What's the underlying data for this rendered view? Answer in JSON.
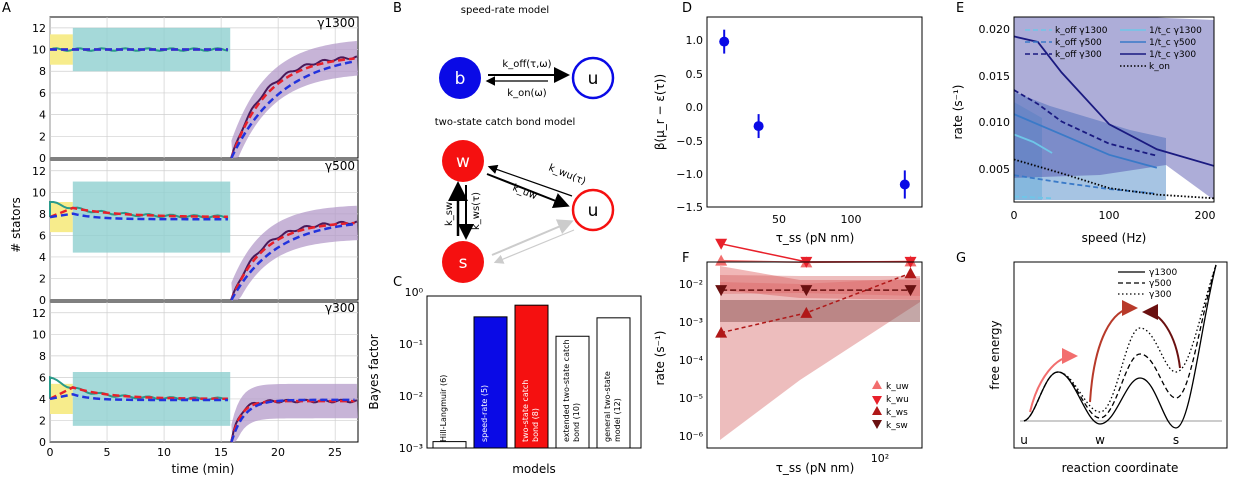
{
  "panels": {
    "A": {
      "letter": "A",
      "xlabel": "time (min)",
      "ylabel": "# stators",
      "xticks": [
        "0",
        "5",
        "10",
        "15",
        "20",
        "25"
      ],
      "yticks": [
        "0",
        "2",
        "4",
        "6",
        "8",
        "10",
        "12"
      ],
      "subplot_labels": [
        "γ1300",
        "γ500",
        "γ300"
      ]
    },
    "B": {
      "letter": "B",
      "title1": "speed-rate model",
      "title2": "two-state catch bond model",
      "b": "b",
      "u": "u",
      "w": "w",
      "s": "s",
      "k_off": "k_off(τ,ω)",
      "k_on": "k_on(ω)",
      "k_wu": "k_wu(τ)",
      "k_uw": "k_uw",
      "k_sw": "k_sw",
      "k_ws": "k_ws(τ)"
    },
    "C": {
      "letter": "C",
      "ylabel": "Bayes factor",
      "xlabel": "models",
      "yticks": [
        "10⁻³",
        "10⁻²",
        "10⁻¹",
        "10⁰"
      ]
    },
    "D": {
      "letter": "D",
      "ylabel": "β(μ_r − ε(τ))",
      "xlabel": "τ_ss (pN nm)",
      "xticks": [
        "50",
        "100"
      ],
      "yticks": [
        "1.0",
        "0.5",
        "0.0",
        "−0.5",
        "−1.0",
        "−1.5"
      ]
    },
    "E": {
      "letter": "E",
      "ylabel": "rate (s⁻¹)",
      "xlabel": "speed (Hz)",
      "xticks": [
        "0",
        "100",
        "200"
      ],
      "yticks": [
        "0.005",
        "0.010",
        "0.015",
        "0.020"
      ],
      "legend": [
        "k_off γ1300",
        "k_off γ500",
        "k_off γ300",
        "1/t_c γ1300",
        "1/t_c γ500",
        "1/t_c γ300",
        "k_on"
      ]
    },
    "F": {
      "letter": "F",
      "ylabel": "rate (s⁻¹)",
      "xlabel": "τ_ss (pN nm)",
      "xtick": "10²",
      "yticks": [
        "10⁻⁶",
        "10⁻⁵",
        "10⁻⁴",
        "10⁻³",
        "10⁻²"
      ],
      "legend": [
        "k_uw",
        "k_wu",
        "k_ws",
        "k_sw"
      ]
    },
    "G": {
      "letter": "G",
      "ylabel": "free energy",
      "xlabel": "reaction coordinate",
      "ticks": [
        "u",
        "w",
        "s"
      ],
      "legend": [
        "γ1300",
        "γ500",
        "γ300"
      ]
    }
  },
  "colors": {
    "teal": "#8fcfcf",
    "purple": "#b49bc9",
    "yellow": "#f7ec8c",
    "red": "#e8202a",
    "blue": "#2233dd",
    "navy": "#1a1a80"
  },
  "chart_data": [
    {
      "type": "bar",
      "panel": "C",
      "categories": [
        "Hill-Langmuir (6)",
        "speed-rate (5)",
        "two-state catch bond (8)",
        "extended two-state catch bond (10)",
        "general two-state model (12)"
      ],
      "values": [
        0.0014,
        1.0,
        1.85,
        0.36,
        0.95
      ],
      "log_y": true,
      "ylim": [
        0.001,
        3
      ]
    },
    {
      "type": "scatter",
      "panel": "D",
      "x": [
        12,
        36,
        138
      ],
      "y": [
        0.85,
        -0.35,
        -1.18
      ],
      "yerr": [
        0.17,
        0.17,
        0.2
      ],
      "xlim": [
        0,
        150
      ],
      "ylim": [
        -1.5,
        1.2
      ]
    },
    {
      "type": "line",
      "panel": "E",
      "xlim": [
        0,
        210
      ],
      "ylim": [
        0.0012,
        0.0212
      ],
      "series": [
        {
          "name": "k_off γ1300",
          "x": [
            0,
            20,
            40
          ],
          "y": [
            0.0018,
            0.0017,
            0.0016
          ]
        },
        {
          "name": "k_off γ500",
          "x": [
            0,
            50,
            100,
            150
          ],
          "y": [
            0.0041,
            0.0033,
            0.0026,
            0.0021
          ]
        },
        {
          "name": "k_off γ300",
          "x": [
            0,
            25,
            50,
            100,
            150
          ],
          "y": [
            0.0133,
            0.0118,
            0.0099,
            0.0075,
            0.0062
          ]
        },
        {
          "name": "1/t_c γ1300",
          "x": [
            0,
            20,
            40
          ],
          "y": [
            0.0085,
            0.0077,
            0.0065
          ]
        },
        {
          "name": "1/t_c γ500",
          "x": [
            0,
            50,
            100,
            150
          ],
          "y": [
            0.0107,
            0.0085,
            0.0063,
            0.0049
          ]
        },
        {
          "name": "1/t_c γ300",
          "x": [
            0,
            25,
            50,
            100,
            150,
            210
          ],
          "y": [
            0.0191,
            0.0185,
            0.0152,
            0.0096,
            0.0069,
            0.0051
          ]
        },
        {
          "name": "k_on",
          "x": [
            0,
            50,
            100,
            150,
            210
          ],
          "y": [
            0.0058,
            0.0043,
            0.0027,
            0.002,
            0.0016
          ]
        }
      ]
    },
    {
      "type": "line",
      "panel": "F",
      "log_x": true,
      "log_y": true,
      "series": [
        {
          "name": "k_uw",
          "x": [
            12,
            36,
            138
          ],
          "y": [
            0.0085,
            0.0078,
            0.0082
          ]
        },
        {
          "name": "k_wu",
          "x": [
            12,
            36,
            138
          ],
          "y": [
            0.02,
            0.008,
            0.008
          ]
        },
        {
          "name": "k_ws",
          "x": [
            12,
            36,
            138
          ],
          "y": [
            0.00022,
            0.0006,
            0.0045
          ]
        },
        {
          "name": "k_sw",
          "x": [
            12,
            36,
            138
          ],
          "y": [
            0.0019,
            0.0019,
            0.0019
          ]
        }
      ]
    }
  ]
}
